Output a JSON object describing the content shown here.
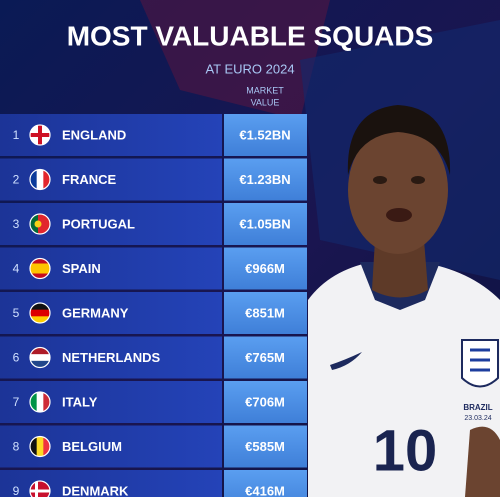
{
  "header": {
    "title": "MOST VALUABLE SQUADS",
    "subtitle": "AT EURO 2024",
    "column": [
      "MARKET",
      "VALUE"
    ]
  },
  "table": {
    "rows": [
      [
        "1",
        "ENGLAND",
        "€1.52BN"
      ],
      [
        "2",
        "FRANCE",
        "€1.23BN"
      ],
      [
        "3",
        "PORTUGAL",
        "€1.05BN"
      ],
      [
        "4",
        "SPAIN",
        "€966M"
      ],
      [
        "5",
        "GERMANY",
        "€851M"
      ],
      [
        "6",
        "NETHERLANDS",
        "€765M"
      ],
      [
        "7",
        "ITALY",
        "€706M"
      ],
      [
        "8",
        "BELGIUM",
        "€585M"
      ],
      [
        "9",
        "DENMARK",
        "€416M"
      ]
    ]
  },
  "jersey": {
    "number": "10",
    "patch": [
      "BRAZIL",
      "23.03.24"
    ]
  }
}
